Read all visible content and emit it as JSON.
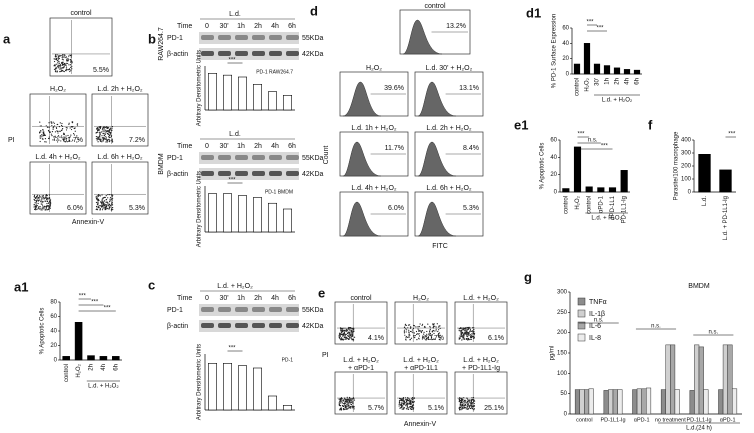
{
  "panels": {
    "a": {
      "letter": "a",
      "y_label": "PI",
      "x_label": "Annexin-V",
      "plots": [
        {
          "title": "control",
          "value": "5.5%"
        },
        {
          "title": "H₂O₂",
          "value": "51.7%"
        },
        {
          "title": "L.d. 2h + H₂O₂",
          "value": "7.2%"
        },
        {
          "title": "L.d. 4h + H₂O₂",
          "value": "6.0%"
        },
        {
          "title": "L.d. 6h + H₂O₂",
          "value": "5.3%"
        }
      ]
    },
    "b": {
      "letter": "b",
      "blots": [
        {
          "cell_line": "RAW264.7",
          "header": "L.d.",
          "time_label": "Time",
          "times": [
            "0",
            "30'",
            "1h",
            "2h",
            "4h",
            "6h"
          ],
          "rows": [
            {
              "name": "PD-1",
              "size": "55KDa"
            },
            {
              "name": "β-actin",
              "size": "42KDa"
            }
          ]
        },
        {
          "cell_line": "BMDM",
          "header": "L.d.",
          "time_label": "Time",
          "times": [
            "0",
            "30'",
            "1h",
            "2h",
            "4h",
            "6h"
          ],
          "rows": [
            {
              "name": "PD-1",
              "size": "55KDa"
            },
            {
              "name": "β-actin",
              "size": "42KDa"
            }
          ]
        }
      ]
    },
    "c": {
      "letter": "c",
      "blots": [
        {
          "header": "L.d. + H₂O₂",
          "time_label": "Time",
          "times": [
            "0",
            "30'",
            "1h",
            "2h",
            "4h",
            "6h"
          ],
          "rows": [
            {
              "name": "PD-1",
              "size": "55KDa"
            },
            {
              "name": "β-actin",
              "size": "42KDa"
            }
          ]
        }
      ]
    },
    "d": {
      "letter": "d",
      "y_label": "Count",
      "x_label": "FITC",
      "plots": [
        {
          "title": "control",
          "value": "13.2%"
        },
        {
          "title": "H₂O₂",
          "value": "39.6%"
        },
        {
          "title": "L.d. 30' + H₂O₂",
          "value": "13.1%"
        },
        {
          "title": "L.d. 1h + H₂O₂",
          "value": "11.7%"
        },
        {
          "title": "L.d. 2h + H₂O₂",
          "value": "8.4%"
        },
        {
          "title": "L.d. 4h + H₂O₂",
          "value": "6.0%"
        },
        {
          "title": "L.d. 6h + H₂O₂",
          "value": "5.3%"
        }
      ]
    },
    "e": {
      "letter": "e",
      "y_label": "PI",
      "x_label": "Annexin-V",
      "plots": [
        {
          "title": [
            "control"
          ],
          "value": "4.1%"
        },
        {
          "title": [
            "H₂O₂"
          ],
          "value": "50.7%"
        },
        {
          "title": [
            "L.d. + H₂O₂"
          ],
          "value": "6.1%"
        },
        {
          "title": [
            "L.d. + H₂O₂",
            "+ αPD-1"
          ],
          "value": "5.7%"
        },
        {
          "title": [
            "L.d. + H₂O₂",
            "+ αPD-1L1"
          ],
          "value": "5.1%"
        },
        {
          "title": [
            "L.d. + H₂O₂",
            "+ PD-1L1-Ig"
          ],
          "value": "25.1%"
        }
      ]
    }
  },
  "chart_data": [
    {
      "type": "bar",
      "panel": "a1",
      "y_label": "% Apoptotic Cells",
      "categories": [
        "control",
        "H₂O₂",
        "2h",
        "4h",
        "6h"
      ],
      "group_label": "L.d. + H₂O₂",
      "values": [
        5,
        52,
        6,
        5,
        5
      ],
      "color": "#000000",
      "ylim": [
        0,
        80
      ],
      "yticks": [
        0,
        20,
        40,
        60,
        80
      ],
      "annotations": [
        "***",
        "***",
        "***"
      ]
    },
    {
      "type": "bar",
      "y_label": "Arbitrary Densitometric Units",
      "legend": "PD-1 RAW264.7",
      "values": [
        1.0,
        0.95,
        0.9,
        0.7,
        0.5,
        0.4
      ],
      "color": "#ffffff",
      "ylim": [
        0,
        1.2
      ],
      "annotations": [
        "***"
      ]
    },
    {
      "type": "bar",
      "y_label": "Arbitrary Densitometric Units",
      "legend": "PD-1 BMDM",
      "values": [
        1.0,
        1.0,
        0.95,
        0.9,
        0.75,
        0.6
      ],
      "color": "#ffffff",
      "ylim": [
        0,
        1.2
      ],
      "annotations": [
        "***"
      ]
    },
    {
      "type": "bar",
      "y_label": "Arbitrary Densitometric Units",
      "legend": "PD-1",
      "values": [
        1.0,
        1.0,
        0.95,
        0.9,
        0.3,
        0.1
      ],
      "color": "#ffffff",
      "ylim": [
        0,
        1.2
      ],
      "annotations": [
        "***"
      ]
    },
    {
      "type": "bar",
      "panel": "d1",
      "y_label": "% PD-1 Surface Expression",
      "categories": [
        "control",
        "H₂O₂",
        "30'",
        "1h",
        "2h",
        "4h",
        "6h"
      ],
      "group_label": "L.d. + H₂O₂",
      "values": [
        13,
        40,
        13,
        11,
        8,
        6,
        5
      ],
      "color": "#000000",
      "ylim": [
        0,
        60
      ],
      "yticks": [
        0,
        20,
        40,
        60
      ],
      "annotations": [
        "***",
        "***"
      ]
    },
    {
      "type": "bar",
      "panel": "e1",
      "y_label": "% Apoptotic Cells",
      "categories": [
        "control",
        "H₂O₂",
        "control",
        "αPD-1",
        "αPD-1L1",
        "PD-1L1-Ig"
      ],
      "group_label": "L.d. + H₂O₂",
      "values": [
        4,
        52,
        6,
        5,
        5,
        25
      ],
      "color": "#000000",
      "ylim": [
        0,
        60
      ],
      "yticks": [
        0,
        20,
        40,
        60
      ],
      "annotations": [
        "***",
        "n.s.",
        "***"
      ]
    },
    {
      "type": "bar",
      "panel": "f",
      "y_label": "Parasite/100 macrophage",
      "categories": [
        "L.d.",
        "L.d. + PD-1L1-Ig"
      ],
      "values": [
        290,
        170
      ],
      "color": "#000000",
      "ylim": [
        0,
        400
      ],
      "yticks": [
        0,
        100,
        200,
        300,
        400
      ],
      "annotations": [
        "***"
      ]
    },
    {
      "type": "grouped-bar",
      "panel": "g",
      "title": "BMDM",
      "y_label": "pg/ml",
      "categories": [
        "control",
        "PD-1L1-Ig",
        "αPD-1",
        "no treatment",
        "PD-1L1-Ig",
        "αPD-1"
      ],
      "group_label": "L.d.(24 h)",
      "series": [
        {
          "name": "TNFα",
          "color": "#8c8c8c",
          "values": [
            60,
            58,
            60,
            60,
            58,
            60
          ]
        },
        {
          "name": "IL-1β",
          "color": "#d0d0d0",
          "values": [
            60,
            60,
            62,
            170,
            170,
            170
          ]
        },
        {
          "name": "IL-6",
          "color": "#a8a8a8",
          "values": [
            60,
            60,
            62,
            170,
            165,
            170
          ]
        },
        {
          "name": "IL-8",
          "color": "#ececec",
          "values": [
            62,
            60,
            64,
            60,
            60,
            62
          ]
        }
      ],
      "ylim": [
        0,
        300
      ],
      "yticks": [
        0,
        50,
        100,
        150,
        200,
        250,
        300
      ],
      "annotations": [
        "n.s.",
        "n.s.",
        "n.s."
      ]
    }
  ]
}
